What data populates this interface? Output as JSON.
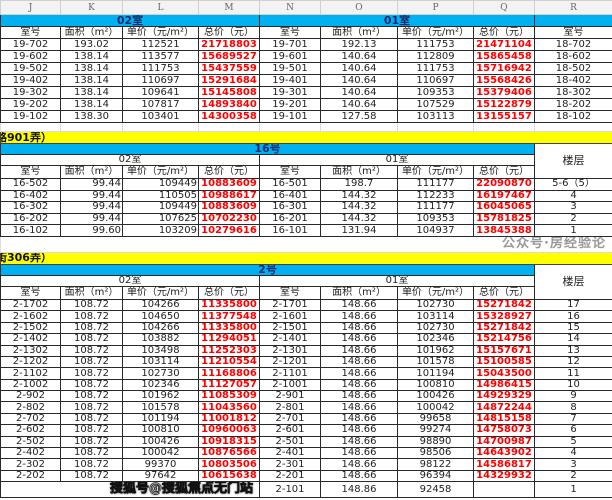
{
  "column_letters": [
    "J",
    "K",
    "L",
    "M",
    "N",
    "O",
    "P",
    "Q",
    "R"
  ],
  "colors": {
    "section_blue": "#00b0f0",
    "banner_yellow": "#ffff00",
    "price_red": "#ff0000"
  },
  "section1": {
    "unit_a": "02室",
    "unit_b": "01室",
    "headers": [
      "室号",
      "面积（m²）",
      "单价（元/m²）",
      "总价（元）",
      "室号",
      "面积（m²）",
      "单价（元/m²）",
      "总价（元）",
      "室号"
    ],
    "rows": [
      [
        "19-702",
        "193.02",
        "112521",
        "21718803",
        "19-701",
        "192.13",
        "111753",
        "21471104",
        "18-702"
      ],
      [
        "19-602",
        "138.14",
        "113577",
        "15689527",
        "19-601",
        "140.64",
        "112809",
        "15865458",
        "18-602"
      ],
      [
        "19-502",
        "138.14",
        "111753",
        "15437559",
        "19-501",
        "140.64",
        "111753",
        "15716942",
        "18-502"
      ],
      [
        "19-402",
        "138.14",
        "110697",
        "15291684",
        "19-401",
        "140.64",
        "110697",
        "15568426",
        "18-402"
      ],
      [
        "19-302",
        "138.14",
        "109641",
        "15145808",
        "19-301",
        "140.64",
        "109353",
        "15379406",
        "18-302"
      ],
      [
        "19-202",
        "138.14",
        "107817",
        "14893840",
        "19-201",
        "140.64",
        "107529",
        "15122879",
        "18-202"
      ],
      [
        "19-102",
        "138.30",
        "103401",
        "14300358",
        "19-101",
        "127.58",
        "103113",
        "13155157",
        "18-102"
      ]
    ]
  },
  "section2": {
    "banner": "路901弄）",
    "building": "16号",
    "unit_a": "02室",
    "unit_b": "01室",
    "floor_label": "楼层",
    "headers": [
      "室号",
      "面积（m²）",
      "单价（元/m²）",
      "总价（元）",
      "室号",
      "面积（m²）",
      "单价（元/m²）",
      "总价（元）"
    ],
    "rows": [
      [
        "16-502",
        "99.44",
        "109449",
        "10883609",
        "16-501",
        "198.7",
        "111177",
        "22090870",
        "5-6（5）"
      ],
      [
        "16-402",
        "99.44",
        "110505",
        "10988617",
        "16-401",
        "144.32",
        "112233",
        "16197467",
        "4"
      ],
      [
        "16-302",
        "99.44",
        "109449",
        "10883609",
        "16-301",
        "144.32",
        "111177",
        "16045065",
        "3"
      ],
      [
        "16-202",
        "99.44",
        "107625",
        "10702230",
        "16-201",
        "144.32",
        "109353",
        "15781825",
        "2"
      ],
      [
        "16-102",
        "99.60",
        "103209",
        "10279616",
        "16-101",
        "131.94",
        "104937",
        "13845388",
        "1"
      ]
    ]
  },
  "section3": {
    "banner": "街306弄）",
    "building": "2号",
    "unit_a": "02室",
    "unit_b": "01室",
    "floor_label": "楼层",
    "headers": [
      "室号",
      "面积（m²）",
      "单价（元/m²）",
      "总价（元）",
      "室号",
      "面积（m²）",
      "单价（元/m²）",
      "总价（元）"
    ],
    "rows": [
      [
        "2-1702",
        "108.72",
        "104266",
        "11335800",
        "2-1701",
        "148.66",
        "102730",
        "15271842",
        "17"
      ],
      [
        "2-1602",
        "108.72",
        "104650",
        "11377548",
        "2-1601",
        "148.66",
        "103114",
        "15328927",
        "16"
      ],
      [
        "2-1502",
        "108.72",
        "104266",
        "11335800",
        "2-1501",
        "148.66",
        "102730",
        "15271842",
        "15"
      ],
      [
        "2-1402",
        "108.72",
        "103882",
        "11294051",
        "2-1401",
        "148.66",
        "102346",
        "15214756",
        "14"
      ],
      [
        "2-1302",
        "108.72",
        "103498",
        "11252303",
        "2-1301",
        "148.66",
        "101962",
        "15157671",
        "13"
      ],
      [
        "2-1202",
        "108.72",
        "103114",
        "11210554",
        "2-1201",
        "148.66",
        "101578",
        "15100585",
        "12"
      ],
      [
        "2-1102",
        "108.72",
        "102730",
        "11168806",
        "2-1101",
        "148.66",
        "101194",
        "15043500",
        "11"
      ],
      [
        "2-1002",
        "108.72",
        "102346",
        "11127057",
        "2-1001",
        "148.66",
        "100810",
        "14986415",
        "10"
      ],
      [
        "2-902",
        "108.72",
        "101962",
        "11085309",
        "2-901",
        "148.66",
        "100426",
        "14929329",
        "9"
      ],
      [
        "2-802",
        "108.72",
        "101578",
        "11043560",
        "2-801",
        "148.66",
        "100042",
        "14872244",
        "8"
      ],
      [
        "2-702",
        "108.72",
        "101194",
        "11001812",
        "2-701",
        "148.66",
        "99658",
        "14815158",
        "7"
      ],
      [
        "2-602",
        "108.72",
        "100810",
        "10960063",
        "2-601",
        "148.66",
        "99274",
        "14758073",
        "6"
      ],
      [
        "2-502",
        "108.72",
        "100426",
        "10918315",
        "2-501",
        "148.66",
        "98890",
        "14700987",
        "5"
      ],
      [
        "2-402",
        "108.72",
        "100042",
        "10876566",
        "2-401",
        "148.66",
        "98506",
        "14643902",
        "4"
      ],
      [
        "2-302",
        "108.72",
        "99370",
        "10803506",
        "2-301",
        "148.66",
        "98122",
        "14586817",
        "3"
      ],
      [
        "2-202",
        "108.72",
        "97642",
        "10615638",
        "2-201",
        "148.66",
        "96394",
        "14329932",
        "2"
      ],
      [
        "",
        "",
        "",
        "",
        "2-101",
        "148.86",
        "92458",
        "",
        "1"
      ]
    ]
  },
  "watermark": {
    "faded": "公众号·房经验论",
    "overlay": "搜狐号@搜狐焦点无门站"
  }
}
